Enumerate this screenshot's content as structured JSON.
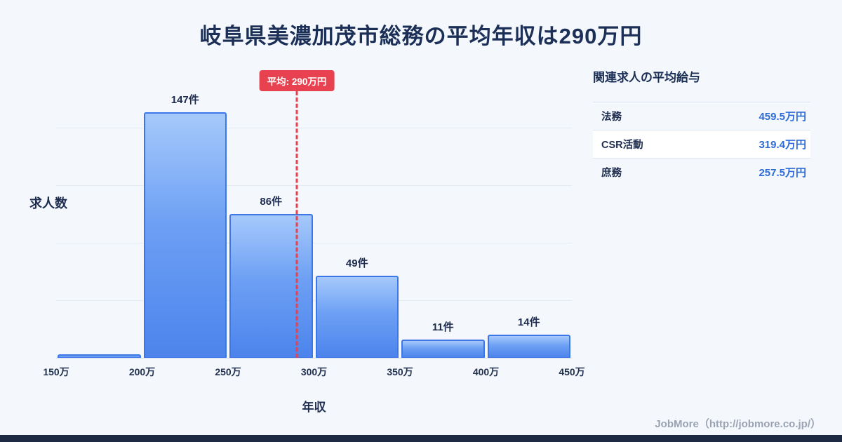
{
  "page": {
    "title": "岐阜県美濃加茂市総務の平均年収は290万円",
    "footer_credit": "JobMore（http://jobmore.co.jp/）"
  },
  "chart_data": {
    "type": "bar",
    "title": "岐阜県美濃加茂市総務の平均年収は290万円",
    "xlabel": "年収",
    "ylabel": "求人数",
    "x_ticks": [
      "150万",
      "200万",
      "250万",
      "300万",
      "350万",
      "400万",
      "450万"
    ],
    "x_range": [
      150,
      450
    ],
    "ylim": [
      0,
      172
    ],
    "grid": true,
    "legend": false,
    "bins": [
      {
        "range": "150万-200万",
        "count": 2,
        "label": ""
      },
      {
        "range": "200万-250万",
        "count": 147,
        "label": "147件"
      },
      {
        "range": "250万-300万",
        "count": 86,
        "label": "86件"
      },
      {
        "range": "300万-350万",
        "count": 49,
        "label": "49件"
      },
      {
        "range": "350万-400万",
        "count": 11,
        "label": "11件"
      },
      {
        "range": "400万-450万",
        "count": 14,
        "label": "14件"
      }
    ],
    "average_line": {
      "value": 290,
      "label": "平均: 290万円",
      "color": "#e8404e"
    }
  },
  "related_panel": {
    "heading": "関連求人の平均給与",
    "rows": [
      {
        "label": "法務",
        "value": "459.5万円",
        "highlight": false
      },
      {
        "label": "CSR活動",
        "value": "319.4万円",
        "highlight": true
      },
      {
        "label": "庶務",
        "value": "257.5万円",
        "highlight": false
      }
    ]
  },
  "colors": {
    "background": "#f4f8fc",
    "navy": "#1c2f57",
    "value_blue": "#2e6bd8",
    "bar_border": "#3d76e6",
    "bar_gradient_top": "#a6c9fb",
    "bar_gradient_bottom": "#4c84ec",
    "average_red": "#e8414f",
    "gridline": "#e4eaf2",
    "footer_bar": "#1e2a44",
    "credit_gray": "#99a3b3"
  }
}
